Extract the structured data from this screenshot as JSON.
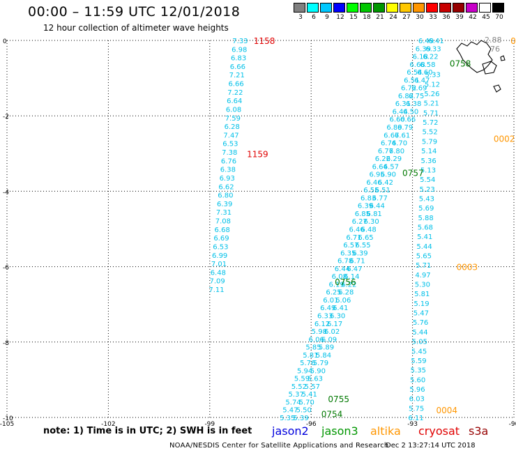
{
  "header": {
    "title": "00:00 – 11:59 UTC 12/01/2018",
    "subtitle": "12 hour collection of altimeter wave heights"
  },
  "color_scale": {
    "labels": [
      "3",
      "6",
      "9",
      "12",
      "15",
      "18",
      "21",
      "24",
      "27",
      "30",
      "33",
      "36",
      "39",
      "42",
      "45",
      "70"
    ],
    "unit": "(ft)",
    "colors": [
      "#808080",
      "#00ffff",
      "#00c8ff",
      "#0000ff",
      "#00ff00",
      "#00c800",
      "#009600",
      "#ffff00",
      "#ffc800",
      "#ff9600",
      "#ff0000",
      "#c80000",
      "#960000",
      "#c800c8",
      "#ffffff",
      "#000000"
    ]
  },
  "axes": {
    "x_ticks": [
      {
        "v": -105,
        "t": "-105"
      },
      {
        "v": -102,
        "t": "-102"
      },
      {
        "v": -99,
        "t": "-99"
      },
      {
        "v": -96,
        "t": "-96"
      },
      {
        "v": -93,
        "t": "-93"
      },
      {
        "v": -90,
        "t": "-90"
      }
    ],
    "y_ticks": [
      {
        "v": 0,
        "t": "0"
      },
      {
        "v": -2,
        "t": "-2"
      },
      {
        "v": -4,
        "t": "-4"
      },
      {
        "v": -6,
        "t": "-6"
      },
      {
        "v": -8,
        "t": "-8"
      },
      {
        "v": -10,
        "t": "-10"
      }
    ],
    "x_range": [
      -105,
      -90
    ],
    "y_range": [
      -10,
      0
    ]
  },
  "chart_data": {
    "type": "scatter",
    "tracks": [
      {
        "satellite": "cryosat",
        "color": "#00c0e8",
        "lon_top": -98.1,
        "lat_top": 0.0,
        "lon_bottom": -98.8,
        "lat_bottom": -6.6,
        "values": [
          "7.33",
          "6.98",
          "6.83",
          "6.66",
          "7.21",
          "6.66",
          "7.22",
          "6.64",
          "6.08",
          "7.59",
          "6.28",
          "7.47",
          "6.53",
          "7.38",
          "6.76",
          "6.38",
          "6.93",
          "6.62",
          "6.80",
          "6.39",
          "7.31",
          "7.08",
          "6.68",
          "6.69",
          "6.53",
          "6.99",
          "7.01",
          "6.48",
          "7.09",
          "7.11"
        ]
      },
      {
        "satellite": "altika",
        "color": "#00c0e8",
        "lon_top": -92.4,
        "lat_top": -0.9,
        "lon_bottom": -92.9,
        "lat_bottom": -10.0,
        "values": [
          "5.33",
          "5.12",
          "5.26",
          "5.21",
          "5.71",
          "5.72",
          "5.52",
          "5.79",
          "5.14",
          "5.36",
          "5.13",
          "5.54",
          "5.23",
          "5.43",
          "5.69",
          "5.88",
          "5.68",
          "5.41",
          "5.44",
          "5.65",
          "5.71",
          "4.97",
          "5.30",
          "5.81",
          "5.19",
          "5.47",
          "5.76",
          "5.44",
          "5.05",
          "5.45",
          "5.59",
          "5.35",
          "5.60",
          "5.96",
          "6.03",
          "5.75",
          "6.11"
        ]
      },
      {
        "satellite": "jason3",
        "color": "#00c0e8",
        "lon_top": -92.6,
        "lat_top": 0.0,
        "lon_bottom": -96.7,
        "lat_bottom": -10.0,
        "values": [
          "6.49",
          "6.39",
          "6.18",
          "6.68",
          "6.54",
          "6.51",
          "6.72",
          "6.82",
          "6.31",
          "6.44",
          "6.60",
          "6.89",
          "6.67",
          "6.74",
          "6.77",
          "6.22",
          "6.64",
          "6.95",
          "6.46",
          "6.55",
          "6.83",
          "6.39",
          "6.85",
          "6.27",
          "6.46",
          "6.71",
          "6.57",
          "6.35",
          "6.78",
          "6.44",
          "6.08",
          "6.19",
          "6.25",
          "6.01",
          "6.49",
          "6.33",
          "6.12",
          "5.98",
          "6.06",
          "5.85",
          "5.81",
          "5.76",
          "5.94",
          "5.59",
          "5.52",
          "5.37",
          "5.74",
          "5.47",
          "5.35"
        ]
      },
      {
        "satellite": "jason2",
        "color": "#00c0e8",
        "lon_top": -92.3,
        "lat_top": 0.0,
        "lon_bottom": -96.3,
        "lat_bottom": -10.0,
        "values": [
          "6.41",
          "6.33",
          "6.22",
          "6.58",
          "6.60",
          "6.47",
          "6.69",
          "6.75",
          "6.38",
          "6.50",
          "6.66",
          "6.79",
          "6.61",
          "6.70",
          "6.80",
          "6.29",
          "6.57",
          "6.90",
          "6.42",
          "6.51",
          "6.77",
          "6.44",
          "6.81",
          "6.30",
          "6.48",
          "6.65",
          "6.55",
          "6.39",
          "6.71",
          "6.47",
          "6.14",
          "6.22",
          "6.28",
          "6.06",
          "6.41",
          "6.30",
          "6.17",
          "6.02",
          "6.09",
          "5.89",
          "5.84",
          "5.79",
          "5.90",
          "5.63",
          "5.57",
          "5.41",
          "5.70",
          "5.50",
          "5.39"
        ]
      }
    ],
    "time_labels": [
      {
        "text": "1158",
        "color": "#e00000",
        "lon": -97.7,
        "lat": 0.0
      },
      {
        "text": "1159",
        "color": "#e00000",
        "lon": -97.9,
        "lat": -3.0
      },
      {
        "text": "0758",
        "color": "#007800",
        "lon": -91.9,
        "lat": -0.6
      },
      {
        "text": "0757",
        "color": "#007800",
        "lon": -93.3,
        "lat": -3.5
      },
      {
        "text": "0756",
        "color": "#007800",
        "lon": -95.3,
        "lat": -6.4
      },
      {
        "text": "0755",
        "color": "#007800",
        "lon": -95.5,
        "lat": -9.5
      },
      {
        "text": "0754",
        "color": "#007800",
        "lon": -95.7,
        "lat": -9.9
      },
      {
        "text": "0002",
        "color": "#ff9600",
        "lon": -90.6,
        "lat": -2.6
      },
      {
        "text": "0003",
        "color": "#ff9600",
        "lon": -91.7,
        "lat": -6.0
      },
      {
        "text": "0004",
        "color": "#ff9600",
        "lon": -92.3,
        "lat": -9.8
      },
      {
        "text": "0",
        "color": "#ff9600",
        "lon": -90.1,
        "lat": 0.0
      }
    ],
    "coast_labels": [
      "2.88",
      "76"
    ]
  },
  "footer": {
    "note": "note:  1) Time is in UTC;  2) SWH is in feet",
    "legend": [
      {
        "name": "jason2",
        "color": "#0000dd"
      },
      {
        "name": "jason3",
        "color": "#009600"
      },
      {
        "name": "altika",
        "color": "#ff9600"
      },
      {
        "name": "cryosat",
        "color": "#e00000"
      },
      {
        "name": "s3a",
        "color": "#960000"
      }
    ],
    "credit": "NOAA/NESDIS Center for Satellite Applications and Research",
    "date": "Dec  2 13:27:14 UTC 2018"
  }
}
